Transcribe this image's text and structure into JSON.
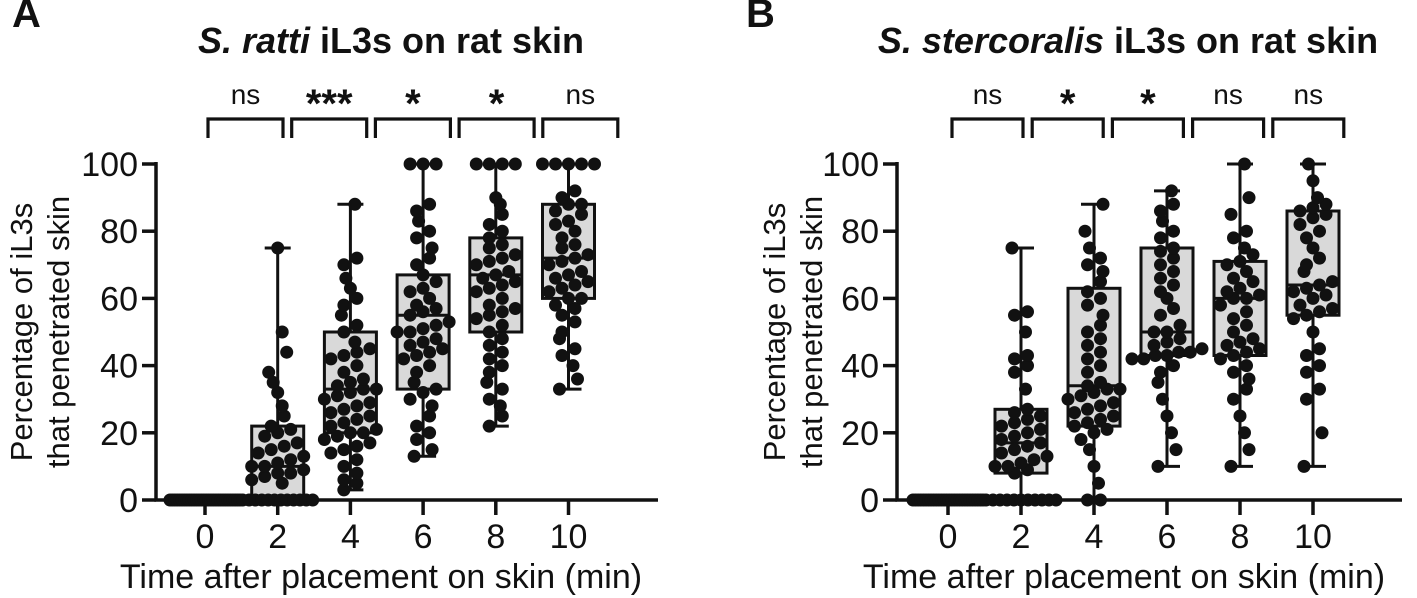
{
  "figure": {
    "background": "#ffffff",
    "ink_color": "#111111",
    "box_fill_color": "#d9d9d9"
  },
  "chart_data": [
    {
      "type": "box-scatter",
      "panel_letter": "A",
      "title": {
        "italic": "S. ratti",
        "plain": " iL3s on rat skin"
      },
      "xlabel": "Time after placement on skin (min)",
      "ylabel_lines": [
        "Percentage of iL3s",
        "that penetrated skin"
      ],
      "categories": [
        "0",
        "2",
        "4",
        "6",
        "8",
        "10"
      ],
      "y_ticks": [
        "0",
        "20",
        "40",
        "60",
        "80",
        "100"
      ],
      "ylim": [
        0,
        100
      ],
      "grid": false,
      "legend": "none",
      "boxes": [
        {
          "min": 0,
          "q1": 0,
          "median": 0,
          "q3": 0,
          "max": 0
        },
        {
          "min": 0,
          "q1": 0,
          "median": 10,
          "q3": 22,
          "max": 75
        },
        {
          "min": 3,
          "q1": 20,
          "median": 33,
          "q3": 50,
          "max": 88
        },
        {
          "min": 13,
          "q1": 33,
          "median": 55,
          "q3": 67,
          "max": 100
        },
        {
          "min": 22,
          "q1": 50,
          "median": 67,
          "q3": 78,
          "max": 100
        },
        {
          "min": 33,
          "q1": 60,
          "median": 72,
          "q3": 88,
          "max": 100
        }
      ],
      "points": [
        [
          0,
          0,
          0,
          0,
          0,
          0,
          0,
          0,
          0,
          0,
          0,
          0,
          0,
          0,
          0,
          0,
          0,
          0,
          0,
          0,
          0,
          0,
          0,
          0,
          0,
          0,
          0,
          0,
          0,
          0
        ],
        [
          0,
          0,
          0,
          0,
          0,
          0,
          0,
          0,
          0,
          0,
          0,
          0,
          5,
          6,
          7,
          8,
          8,
          9,
          10,
          10,
          11,
          12,
          13,
          14,
          15,
          16,
          17,
          19,
          20,
          21,
          22,
          25,
          28,
          32,
          35,
          38,
          44,
          50,
          75
        ],
        [
          3,
          5,
          6,
          8,
          10,
          12,
          14,
          15,
          16,
          17,
          18,
          19,
          20,
          20,
          21,
          22,
          23,
          24,
          25,
          26,
          27,
          28,
          29,
          30,
          31,
          32,
          33,
          33,
          34,
          35,
          36,
          38,
          40,
          42,
          43,
          44,
          45,
          47,
          50,
          52,
          55,
          58,
          60,
          63,
          66,
          70,
          72,
          88
        ],
        [
          13,
          15,
          18,
          20,
          22,
          25,
          28,
          30,
          32,
          33,
          35,
          38,
          40,
          42,
          43,
          44,
          45,
          46,
          47,
          48,
          50,
          50,
          51,
          52,
          53,
          55,
          56,
          57,
          58,
          60,
          62,
          63,
          65,
          67,
          70,
          72,
          75,
          78,
          80,
          83,
          86,
          88,
          100,
          100,
          100
        ],
        [
          22,
          25,
          28,
          30,
          33,
          35,
          38,
          40,
          42,
          44,
          46,
          48,
          50,
          52,
          54,
          55,
          56,
          57,
          58,
          60,
          62,
          63,
          64,
          65,
          66,
          67,
          68,
          70,
          71,
          72,
          73,
          75,
          76,
          78,
          80,
          82,
          85,
          88,
          90,
          100,
          100,
          100,
          100
        ],
        [
          33,
          36,
          40,
          43,
          45,
          48,
          50,
          53,
          55,
          57,
          58,
          60,
          60,
          62,
          63,
          64,
          65,
          66,
          67,
          68,
          70,
          71,
          72,
          73,
          75,
          76,
          78,
          80,
          82,
          83,
          85,
          86,
          88,
          88,
          90,
          92,
          100,
          100,
          100,
          100,
          100
        ]
      ],
      "significance_brackets": [
        {
          "between": [
            "0",
            "2"
          ],
          "label": "ns"
        },
        {
          "between": [
            "2",
            "4"
          ],
          "label": "***"
        },
        {
          "between": [
            "4",
            "6"
          ],
          "label": "*"
        },
        {
          "between": [
            "6",
            "8"
          ],
          "label": "*"
        },
        {
          "between": [
            "8",
            "10"
          ],
          "label": "ns"
        }
      ]
    },
    {
      "type": "box-scatter",
      "panel_letter": "B",
      "title": {
        "italic": "S. stercoralis",
        "plain": " iL3s on rat skin"
      },
      "xlabel": "Time after placement on skin (min)",
      "ylabel_lines": [
        "Percentage of iL3s",
        "that penetrated skin"
      ],
      "categories": [
        "0",
        "2",
        "4",
        "6",
        "8",
        "10"
      ],
      "y_ticks": [
        "0",
        "20",
        "40",
        "60",
        "80",
        "100"
      ],
      "ylim": [
        0,
        100
      ],
      "grid": false,
      "legend": "none",
      "boxes": [
        {
          "min": 0,
          "q1": 0,
          "median": 0,
          "q3": 0,
          "max": 0
        },
        {
          "min": 0,
          "q1": 8,
          "median": 17,
          "q3": 27,
          "max": 75
        },
        {
          "min": 0,
          "q1": 22,
          "median": 34,
          "q3": 63,
          "max": 88
        },
        {
          "min": 10,
          "q1": 43,
          "median": 50,
          "q3": 75,
          "max": 92
        },
        {
          "min": 10,
          "q1": 43,
          "median": 60,
          "q3": 71,
          "max": 100
        },
        {
          "min": 10,
          "q1": 55,
          "median": 64,
          "q3": 86,
          "max": 100
        }
      ],
      "points": [
        [
          0,
          0,
          0,
          0,
          0,
          0,
          0,
          0,
          0,
          0,
          0,
          0,
          0,
          0,
          0,
          0,
          0,
          0,
          0,
          0,
          0,
          0,
          0,
          0,
          0,
          0,
          0,
          0
        ],
        [
          0,
          0,
          0,
          0,
          0,
          0,
          0,
          0,
          0,
          0,
          0,
          8,
          9,
          10,
          10,
          11,
          12,
          13,
          14,
          15,
          16,
          17,
          18,
          19,
          20,
          21,
          22,
          23,
          24,
          25,
          26,
          27,
          33,
          38,
          40,
          42,
          43,
          50,
          55,
          56,
          75
        ],
        [
          0,
          0,
          5,
          10,
          15,
          18,
          20,
          21,
          22,
          23,
          24,
          25,
          26,
          27,
          28,
          29,
          30,
          31,
          32,
          33,
          33,
          34,
          35,
          38,
          40,
          42,
          44,
          46,
          48,
          50,
          52,
          55,
          58,
          60,
          62,
          65,
          68,
          70,
          72,
          75,
          80,
          88
        ],
        [
          10,
          15,
          20,
          25,
          30,
          35,
          38,
          40,
          42,
          42,
          43,
          43,
          44,
          44,
          45,
          46,
          47,
          48,
          50,
          50,
          52,
          55,
          57,
          60,
          62,
          64,
          66,
          68,
          70,
          72,
          74,
          75,
          78,
          80,
          83,
          86,
          88,
          92
        ],
        [
          10,
          15,
          20,
          25,
          30,
          33,
          36,
          38,
          40,
          42,
          43,
          44,
          45,
          46,
          47,
          48,
          50,
          52,
          54,
          56,
          58,
          60,
          60,
          61,
          62,
          63,
          65,
          66,
          68,
          70,
          71,
          73,
          75,
          78,
          80,
          85,
          90,
          100
        ],
        [
          10,
          20,
          30,
          33,
          38,
          40,
          43,
          45,
          50,
          54,
          55,
          56,
          57,
          58,
          60,
          61,
          62,
          63,
          64,
          65,
          68,
          70,
          72,
          75,
          78,
          80,
          82,
          84,
          85,
          86,
          87,
          88,
          90,
          95,
          100
        ]
      ],
      "significance_brackets": [
        {
          "between": [
            "0",
            "2"
          ],
          "label": "ns"
        },
        {
          "between": [
            "2",
            "4"
          ],
          "label": "*"
        },
        {
          "between": [
            "4",
            "6"
          ],
          "label": "*"
        },
        {
          "between": [
            "6",
            "8"
          ],
          "label": "ns"
        },
        {
          "between": [
            "8",
            "10"
          ],
          "label": "ns"
        }
      ]
    }
  ]
}
